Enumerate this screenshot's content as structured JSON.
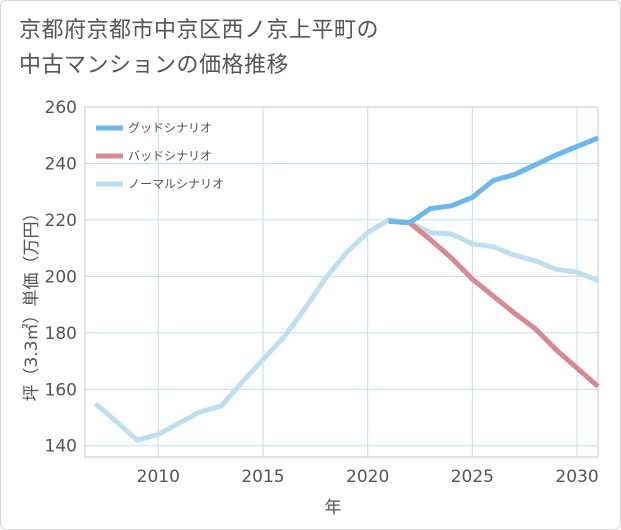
{
  "title_lines": [
    "京都府京都市中京区西ノ京上平町の",
    "中古マンションの価格推移"
  ],
  "colors": {
    "good": "#6cb8ec",
    "bad": "#d88890",
    "normal": "#bfdff0",
    "grid": "#c5dde9",
    "text": "#555555"
  },
  "chart_data": {
    "type": "line",
    "xlabel": "年",
    "ylabel": "坪（3.3㎡）単価（万円）",
    "xlim": [
      2006.5,
      2031
    ],
    "ylim": [
      136,
      260
    ],
    "x_ticks": [
      2010,
      2015,
      2020,
      2025,
      2030
    ],
    "y_ticks": [
      140,
      160,
      180,
      200,
      220,
      240,
      260
    ],
    "legend_position": "top-left",
    "series": [
      {
        "key": "good",
        "name": "グッドシナリオ",
        "x": [
          2021,
          2022,
          2023,
          2024,
          2025,
          2026,
          2027,
          2028,
          2029,
          2030,
          2031
        ],
        "y": [
          219.5,
          219,
          224,
          225,
          228,
          234,
          236,
          239.5,
          243,
          246,
          249
        ]
      },
      {
        "key": "bad",
        "name": "バッドシナリオ",
        "x": [
          2021,
          2022,
          2023,
          2024,
          2025,
          2026,
          2027,
          2028,
          2029,
          2030,
          2031
        ],
        "y": [
          219.5,
          219,
          213,
          206.5,
          199,
          193,
          187,
          181.5,
          174,
          167.5,
          161
        ]
      },
      {
        "key": "normal",
        "name": "ノーマルシナリオ",
        "x": [
          2007,
          2008,
          2009,
          2010,
          2011,
          2012,
          2013,
          2014,
          2015,
          2016,
          2017,
          2018,
          2019,
          2020,
          2021,
          2022,
          2023,
          2024,
          2025,
          2026,
          2027,
          2028,
          2029,
          2030,
          2031
        ],
        "y": [
          155,
          148.5,
          142,
          144,
          148,
          152,
          154,
          162.5,
          170.5,
          178.5,
          188.5,
          199.5,
          208.5,
          215.5,
          220,
          219,
          215.5,
          215,
          211.5,
          210.5,
          207.5,
          205.5,
          202.5,
          201.5,
          198.5
        ]
      }
    ]
  }
}
